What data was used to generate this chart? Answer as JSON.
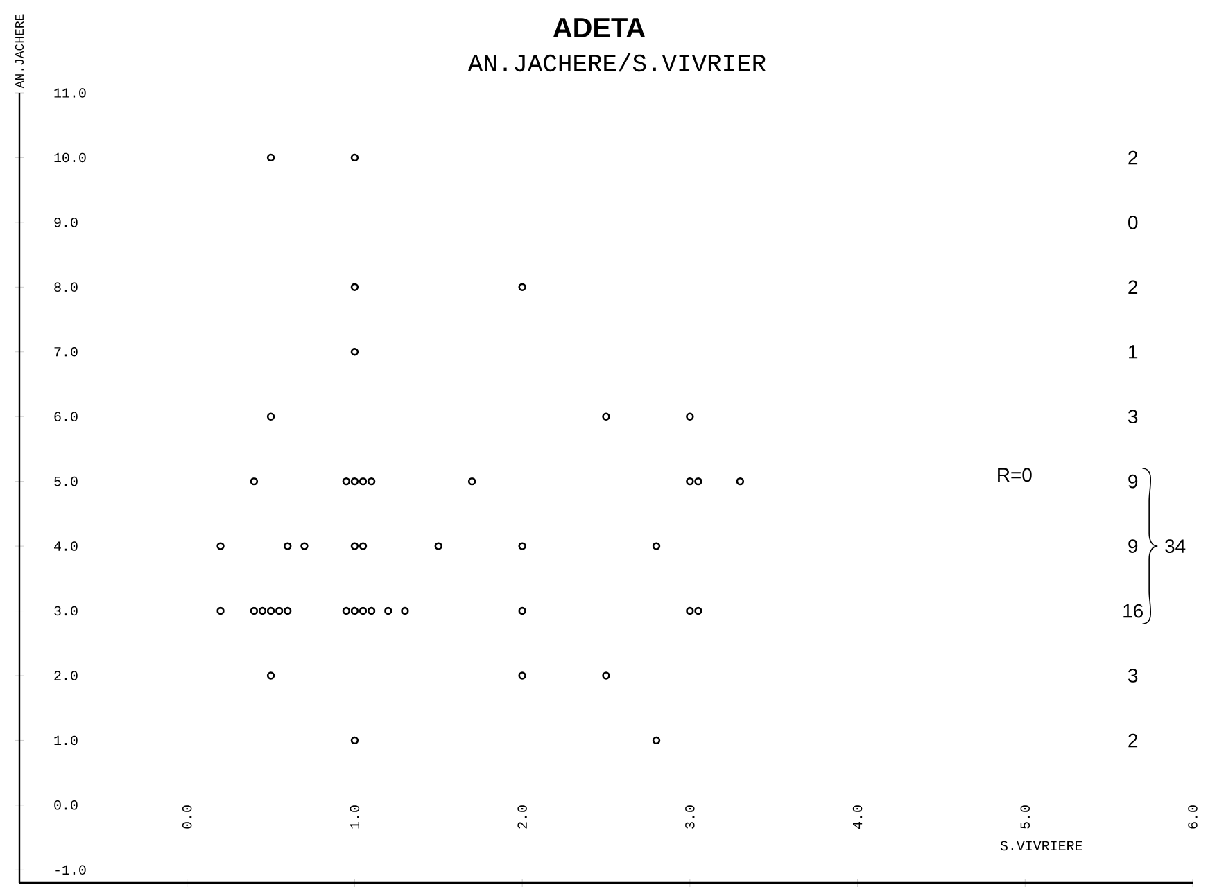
{
  "chart_data": {
    "type": "scatter",
    "title": "ADETA",
    "subtitle": "AN.JACHERE/S.VIVRIER",
    "xlabel": "S.VIVRIERE",
    "ylabel": "AN.JACHERE",
    "x": [
      0.5,
      1.0,
      1.0,
      2.0,
      1.0,
      0.5,
      2.5,
      3.0,
      0.4,
      0.95,
      1.0,
      1.05,
      1.1,
      1.7,
      3.0,
      3.05,
      3.3,
      0.2,
      0.6,
      0.7,
      1.0,
      1.05,
      1.5,
      2.0,
      2.8,
      0.2,
      0.4,
      0.45,
      0.5,
      0.55,
      0.6,
      0.95,
      1.0,
      1.05,
      1.1,
      1.2,
      1.3,
      2.0,
      3.0,
      3.05,
      0.5,
      2.0,
      2.5,
      1.0,
      2.8
    ],
    "values": [
      10,
      10,
      8,
      8,
      7,
      6,
      6,
      6,
      5,
      5,
      5,
      5,
      5,
      5,
      5,
      5,
      5,
      4,
      4,
      4,
      4,
      4,
      4,
      4,
      4,
      3,
      3,
      3,
      3,
      3,
      3,
      3,
      3,
      3,
      3,
      3,
      3,
      3,
      3,
      3,
      2,
      2,
      2,
      1,
      1
    ],
    "color": "#000000",
    "marker": "circle",
    "xlim": [
      -1,
      6
    ],
    "ylim": [
      -1.2,
      11
    ],
    "xticks": [
      {
        "value": 0,
        "label": "0.0"
      },
      {
        "value": 1,
        "label": "1.0"
      },
      {
        "value": 2,
        "label": "2.0"
      },
      {
        "value": 3,
        "label": "3.0"
      },
      {
        "value": 4,
        "label": "4.0"
      },
      {
        "value": 5,
        "label": "5.0"
      },
      {
        "value": 6,
        "label": "6.0"
      }
    ],
    "yticks": [
      {
        "value": -1,
        "label": "-1.0"
      },
      {
        "value": 0,
        "label": "0.0"
      },
      {
        "value": 1,
        "label": "1.0"
      },
      {
        "value": 2,
        "label": "2.0"
      },
      {
        "value": 3,
        "label": "3.0"
      },
      {
        "value": 4,
        "label": "4.0"
      },
      {
        "value": 5,
        "label": "5.0"
      },
      {
        "value": 6,
        "label": "6.0"
      },
      {
        "value": 7,
        "label": "7.0"
      },
      {
        "value": 8,
        "label": "8.0"
      },
      {
        "value": 9,
        "label": "9.0"
      },
      {
        "value": 10,
        "label": "10.0"
      },
      {
        "value": 11,
        "label": "11.0"
      }
    ],
    "annotations": [
      "2",
      "0",
      "2",
      "1",
      "3",
      "9",
      "9",
      "16",
      "3",
      "2",
      "34",
      "R=0"
    ]
  }
}
